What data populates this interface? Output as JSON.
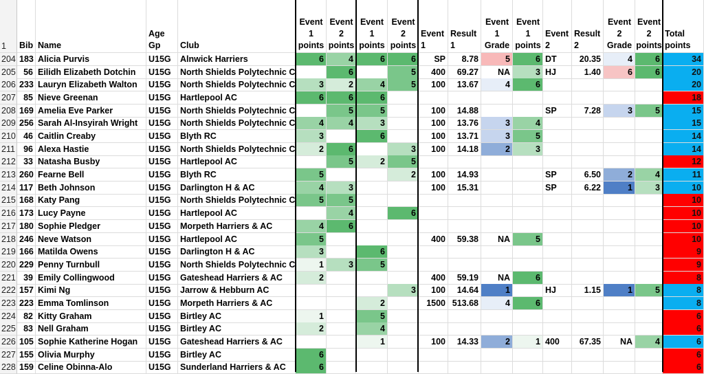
{
  "colors": {
    "green_1": "#edf6ef",
    "green_2": "#d5ecda",
    "green_3": "#b6dfbf",
    "green_4": "#99d3a5",
    "green_5": "#7ac68a",
    "green_6": "#5cb96f",
    "blue_1": "#4f7fc6",
    "blue_2": "#8fadd9",
    "blue_3": "#c6d5ee",
    "blue_4": "#e7eef8",
    "red_5": "#f8b9b9",
    "red_6": "#f7c4c4",
    "total_blue": "#0aaef0",
    "total_red": "#ff0000"
  },
  "header": {
    "row_number": "1",
    "bib": "Bib",
    "name": "Name",
    "age_gp": "Age Gp",
    "club": "Club",
    "e1p_a": "Event\n1\npoints",
    "e2p_a": "Event\n2\npoints",
    "e1p_b": "Event\n1\npoints",
    "e2p_b": "Event\n2\npoints",
    "event1": "Event\n1",
    "result1": "Result\n1",
    "e1grade": "Event\n1\nGrade",
    "e1points": "Event\n1\npoints",
    "event2": "Event\n2",
    "result2": "Result\n2",
    "e2grade": "Event\n2\nGrade",
    "e2points": "Event\n2\npoints",
    "total": "Total\npoints"
  },
  "rows": [
    {
      "row": "204",
      "bib": "183",
      "name": "Alicia Purvis",
      "age": "U15G",
      "club": "Alnwick Harriers",
      "a1": "6",
      "a2": "4",
      "b1": "6",
      "b2": "6",
      "ev1": "SP",
      "res1": "8.78",
      "g1": "5",
      "p1": "6",
      "ev2": "DT",
      "res2": "20.35",
      "g2": "4",
      "p2": "6",
      "total": "34",
      "tc": "blue"
    },
    {
      "row": "205",
      "bib": "56",
      "name": "Eilidh Elizabeth Dotchin",
      "age": "U15G",
      "club": "North Shields Polytechnic Club",
      "a1": "",
      "a2": "6",
      "b1": "",
      "b2": "5",
      "ev1": "400",
      "res1": "69.27",
      "g1": "NA",
      "p1": "3",
      "ev2": "HJ",
      "res2": "1.40",
      "g2": "6",
      "p2": "6",
      "total": "20",
      "tc": "blue"
    },
    {
      "row": "206",
      "bib": "233",
      "name": "Lauryn Elizabeth Walton",
      "age": "U15G",
      "club": "North Shields Polytechnic Club",
      "a1": "3",
      "a2": "2",
      "b1": "4",
      "b2": "5",
      "ev1": "100",
      "res1": "13.67",
      "g1": "4",
      "p1": "6",
      "ev2": "",
      "res2": "",
      "g2": "",
      "p2": "",
      "total": "20",
      "tc": "blue"
    },
    {
      "row": "207",
      "bib": "85",
      "name": "Nieve Greenan",
      "age": "U15G",
      "club": "Hartlepool AC",
      "a1": "6",
      "a2": "6",
      "b1": "6",
      "b2": "",
      "ev1": "",
      "res1": "",
      "g1": "",
      "p1": "",
      "ev2": "",
      "res2": "",
      "g2": "",
      "p2": "",
      "total": "18",
      "tc": "red"
    },
    {
      "row": "208",
      "bib": "169",
      "name": "Amelia Eve Parker",
      "age": "U15G",
      "club": "North Shields Polytechnic Club",
      "a1": "",
      "a2": "5",
      "b1": "5",
      "b2": "",
      "ev1": "100",
      "res1": "14.88",
      "g1": "",
      "p1": "",
      "ev2": "SP",
      "res2": "7.28",
      "g2": "3",
      "p2": "5",
      "total": "15",
      "tc": "blue"
    },
    {
      "row": "209",
      "bib": "256",
      "name": "Sarah Al-Insyirah Wright",
      "age": "U15G",
      "club": "North Shields Polytechnic Club",
      "a1": "4",
      "a2": "4",
      "b1": "3",
      "b2": "",
      "ev1": "100",
      "res1": "13.76",
      "g1": "3",
      "p1": "4",
      "ev2": "",
      "res2": "",
      "g2": "",
      "p2": "",
      "total": "15",
      "tc": "blue"
    },
    {
      "row": "210",
      "bib": "46",
      "name": "Caitlin Creaby",
      "age": "U15G",
      "club": "Blyth RC",
      "a1": "3",
      "a2": "",
      "b1": "6",
      "b2": "",
      "ev1": "100",
      "res1": "13.71",
      "g1": "3",
      "p1": "5",
      "ev2": "",
      "res2": "",
      "g2": "",
      "p2": "",
      "total": "14",
      "tc": "blue"
    },
    {
      "row": "211",
      "bib": "96",
      "name": "Alexa Hastie",
      "age": "U15G",
      "club": "North Shields Polytechnic Club",
      "a1": "2",
      "a2": "6",
      "b1": "",
      "b2": "3",
      "ev1": "100",
      "res1": "14.18",
      "g1": "2",
      "p1": "3",
      "ev2": "",
      "res2": "",
      "g2": "",
      "p2": "",
      "total": "14",
      "tc": "blue"
    },
    {
      "row": "212",
      "bib": "33",
      "name": "Natasha Busby",
      "age": "U15G",
      "club": "Hartlepool AC",
      "a1": "",
      "a2": "5",
      "b1": "2",
      "b2": "5",
      "ev1": "",
      "res1": "",
      "g1": "",
      "p1": "",
      "ev2": "",
      "res2": "",
      "g2": "",
      "p2": "",
      "total": "12",
      "tc": "red"
    },
    {
      "row": "213",
      "bib": "260",
      "name": "Fearne Bell",
      "age": "U15G",
      "club": "Blyth RC",
      "a1": "5",
      "a2": "",
      "b1": "",
      "b2": "2",
      "ev1": "100",
      "res1": "14.93",
      "g1": "",
      "p1": "",
      "ev2": "SP",
      "res2": "6.50",
      "g2": "2",
      "p2": "4",
      "total": "11",
      "tc": "blue"
    },
    {
      "row": "214",
      "bib": "117",
      "name": "Beth Johnson",
      "age": "U15G",
      "club": "Darlington H & AC",
      "a1": "4",
      "a2": "3",
      "b1": "",
      "b2": "",
      "ev1": "100",
      "res1": "15.31",
      "g1": "",
      "p1": "",
      "ev2": "SP",
      "res2": "6.22",
      "g2": "1",
      "p2": "3",
      "total": "10",
      "tc": "blue"
    },
    {
      "row": "215",
      "bib": "168",
      "name": "Katy Pang",
      "age": "U15G",
      "club": "North Shields Polytechnic Club",
      "a1": "5",
      "a2": "5",
      "b1": "",
      "b2": "",
      "ev1": "",
      "res1": "",
      "g1": "",
      "p1": "",
      "ev2": "",
      "res2": "",
      "g2": "",
      "p2": "",
      "total": "10",
      "tc": "red"
    },
    {
      "row": "216",
      "bib": "173",
      "name": "Lucy Payne",
      "age": "U15G",
      "club": "Hartlepool AC",
      "a1": "",
      "a2": "4",
      "b1": "",
      "b2": "6",
      "ev1": "",
      "res1": "",
      "g1": "",
      "p1": "",
      "ev2": "",
      "res2": "",
      "g2": "",
      "p2": "",
      "total": "10",
      "tc": "red"
    },
    {
      "row": "217",
      "bib": "180",
      "name": "Sophie Pledger",
      "age": "U15G",
      "club": "Morpeth Harriers & AC",
      "a1": "4",
      "a2": "6",
      "b1": "",
      "b2": "",
      "ev1": "",
      "res1": "",
      "g1": "",
      "p1": "",
      "ev2": "",
      "res2": "",
      "g2": "",
      "p2": "",
      "total": "10",
      "tc": "red"
    },
    {
      "row": "218",
      "bib": "246",
      "name": "Neve Watson",
      "age": "U15G",
      "club": "Hartlepool AC",
      "a1": "5",
      "a2": "",
      "b1": "",
      "b2": "",
      "ev1": "400",
      "res1": "59.38",
      "g1": "NA",
      "p1": "5",
      "ev2": "",
      "res2": "",
      "g2": "",
      "p2": "",
      "total": "10",
      "tc": "red"
    },
    {
      "row": "219",
      "bib": "166",
      "name": "Matilda Owens",
      "age": "U15G",
      "club": "Darlington H & AC",
      "a1": "3",
      "a2": "",
      "b1": "6",
      "b2": "",
      "ev1": "",
      "res1": "",
      "g1": "",
      "p1": "",
      "ev2": "",
      "res2": "",
      "g2": "",
      "p2": "",
      "total": "9",
      "tc": "red"
    },
    {
      "row": "220",
      "bib": "229",
      "name": "Penny Turnbull",
      "age": "U15G",
      "club": "North Shields Polytechnic Club",
      "a1": "1",
      "a2": "3",
      "b1": "5",
      "b2": "",
      "ev1": "",
      "res1": "",
      "g1": "",
      "p1": "",
      "ev2": "",
      "res2": "",
      "g2": "",
      "p2": "",
      "total": "9",
      "tc": "red"
    },
    {
      "row": "221",
      "bib": "39",
      "name": "Emily Collingwood",
      "age": "U15G",
      "club": "Gateshead Harriers & AC",
      "a1": "2",
      "a2": "",
      "b1": "",
      "b2": "",
      "ev1": "400",
      "res1": "59.19",
      "g1": "NA",
      "p1": "6",
      "ev2": "",
      "res2": "",
      "g2": "",
      "p2": "",
      "total": "8",
      "tc": "red"
    },
    {
      "row": "222",
      "bib": "157",
      "name": "Kimi Ng",
      "age": "U15G",
      "club": "Jarrow & Hebburn AC",
      "a1": "",
      "a2": "",
      "b1": "",
      "b2": "3",
      "ev1": "100",
      "res1": "14.64",
      "g1": "1",
      "p1": "",
      "ev2": "HJ",
      "res2": "1.15",
      "g2": "1",
      "p2": "5",
      "total": "8",
      "tc": "blue"
    },
    {
      "row": "223",
      "bib": "223",
      "name": "Emma Tomlinson",
      "age": "U15G",
      "club": "Morpeth Harriers & AC",
      "a1": "",
      "a2": "",
      "b1": "2",
      "b2": "",
      "ev1": "1500",
      "res1": "513.68",
      "g1": "4",
      "p1": "6",
      "ev2": "",
      "res2": "",
      "g2": "",
      "p2": "",
      "total": "8",
      "tc": "blue"
    },
    {
      "row": "224",
      "bib": "82",
      "name": "Kitty Graham",
      "age": "U15G",
      "club": "Birtley AC",
      "a1": "1",
      "a2": "",
      "b1": "5",
      "b2": "",
      "ev1": "",
      "res1": "",
      "g1": "",
      "p1": "",
      "ev2": "",
      "res2": "",
      "g2": "",
      "p2": "",
      "total": "6",
      "tc": "red"
    },
    {
      "row": "225",
      "bib": "83",
      "name": "Nell Graham",
      "age": "U15G",
      "club": "Birtley AC",
      "a1": "2",
      "a2": "",
      "b1": "4",
      "b2": "",
      "ev1": "",
      "res1": "",
      "g1": "",
      "p1": "",
      "ev2": "",
      "res2": "",
      "g2": "",
      "p2": "",
      "total": "6",
      "tc": "red"
    },
    {
      "row": "226",
      "bib": "105",
      "name": "Sophie Katherine Hogan",
      "age": "U15G",
      "club": "Gateshead Harriers & AC",
      "a1": "",
      "a2": "",
      "b1": "1",
      "b2": "",
      "ev1": "100",
      "res1": "14.33",
      "g1": "2",
      "p1": "1",
      "ev2": "400",
      "res2": "67.35",
      "g2": "NA",
      "p2": "4",
      "total": "6",
      "tc": "blue"
    },
    {
      "row": "227",
      "bib": "155",
      "name": "Olivia Murphy",
      "age": "U15G",
      "club": "Birtley AC",
      "a1": "6",
      "a2": "",
      "b1": "",
      "b2": "",
      "ev1": "",
      "res1": "",
      "g1": "",
      "p1": "",
      "ev2": "",
      "res2": "",
      "g2": "",
      "p2": "",
      "total": "6",
      "tc": "red"
    },
    {
      "row": "228",
      "bib": "159",
      "name": "Celine Obinna-Alo",
      "age": "U15G",
      "club": "Sunderland Harriers & AC",
      "a1": "6",
      "a2": "",
      "b1": "",
      "b2": "",
      "ev1": "",
      "res1": "",
      "g1": "",
      "p1": "",
      "ev2": "",
      "res2": "",
      "g2": "",
      "p2": "",
      "total": "6",
      "tc": "red"
    }
  ]
}
